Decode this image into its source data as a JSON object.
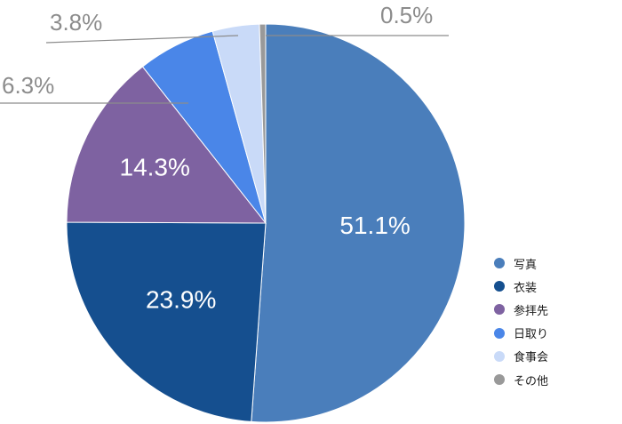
{
  "chart_data": {
    "type": "pie",
    "categories": [
      "写真",
      "衣装",
      "参拝先",
      "日取り",
      "食事会",
      "その他"
    ],
    "values": [
      51.1,
      23.9,
      14.3,
      6.3,
      3.8,
      0.5
    ],
    "labels": [
      "51.1%",
      "23.9%",
      "14.3%",
      "6.3%",
      "3.8%",
      "0.5%"
    ],
    "colors": [
      "#4a7ebb",
      "#154f8f",
      "#7e62a1",
      "#4a86e8",
      "#c9daf8",
      "#999999"
    ],
    "legend_position": "right"
  }
}
